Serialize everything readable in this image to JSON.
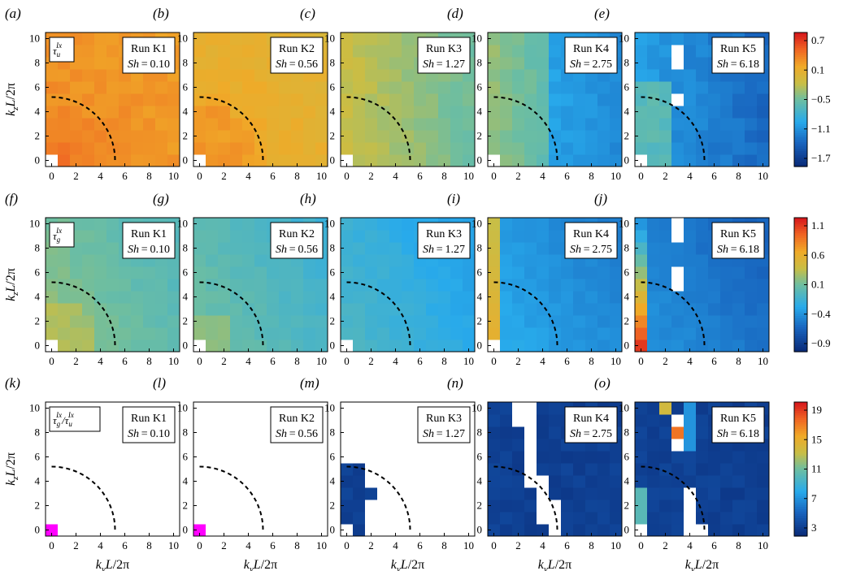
{
  "figure": {
    "rows": [
      {
        "symbol": "τ",
        "sub": "u",
        "sup": "Ix",
        "colorbar_ticks": [
          "0.7",
          "0.1",
          "−0.5",
          "−1.1",
          "−1.7"
        ]
      },
      {
        "symbol": "τ",
        "sub": "g",
        "sup": "Ix",
        "colorbar_ticks": [
          "1.1",
          "0.6",
          "0.1",
          "−0.4",
          "−0.9"
        ]
      },
      {
        "symbol": "τ",
        "sub": "g",
        "sup": "Ix",
        "sub2": "u",
        "sup2": "Ix",
        "colorbar_ticks": [
          "19",
          "15",
          "11",
          "7",
          "3"
        ]
      }
    ],
    "panel_letters": [
      "(a)",
      "(b)",
      "(c)",
      "(d)",
      "(e)",
      "(f)",
      "(g)",
      "(h)",
      "(i)",
      "(j)",
      "(k)",
      "(l)",
      "(m)",
      "(n)",
      "(o)"
    ],
    "runs": [
      {
        "run": "Run K1",
        "sh": "0.10"
      },
      {
        "run": "Run K2",
        "sh": "0.56"
      },
      {
        "run": "Run K3",
        "sh": "1.27"
      },
      {
        "run": "Run K4",
        "sh": "2.75"
      },
      {
        "run": "Run K5",
        "sh": "6.18"
      }
    ],
    "sh_label": "Sh",
    "x_axis_label": "k_yL/2π",
    "y_axis_label": "k_zL/2π",
    "axis_ticks": [
      "0",
      "2",
      "4",
      "6",
      "8",
      "10"
    ]
  },
  "chart_data": {
    "type": "heatmap",
    "description_note": "15 heatmap panels; values estimated from colors",
    "x": [
      0,
      1,
      2,
      3,
      4,
      5,
      6,
      7,
      8,
      9,
      10
    ],
    "y": [
      0,
      1,
      2,
      3,
      4,
      5,
      6,
      7,
      8,
      9,
      10
    ],
    "xlim": [
      -0.5,
      10.5
    ],
    "ylim": [
      -0.5,
      10.5
    ],
    "dashed_circle_radius": 5.2,
    "color_ranges": [
      [
        -1.9,
        0.85
      ],
      [
        -1.05,
        1.25
      ],
      [
        1,
        21
      ]
    ],
    "grid": false
  },
  "colors": {
    "jet_low": "#0a2c7a",
    "jet_high": "#d7191c",
    "mask": "#ffffff",
    "magenta": "#ff00ff"
  }
}
